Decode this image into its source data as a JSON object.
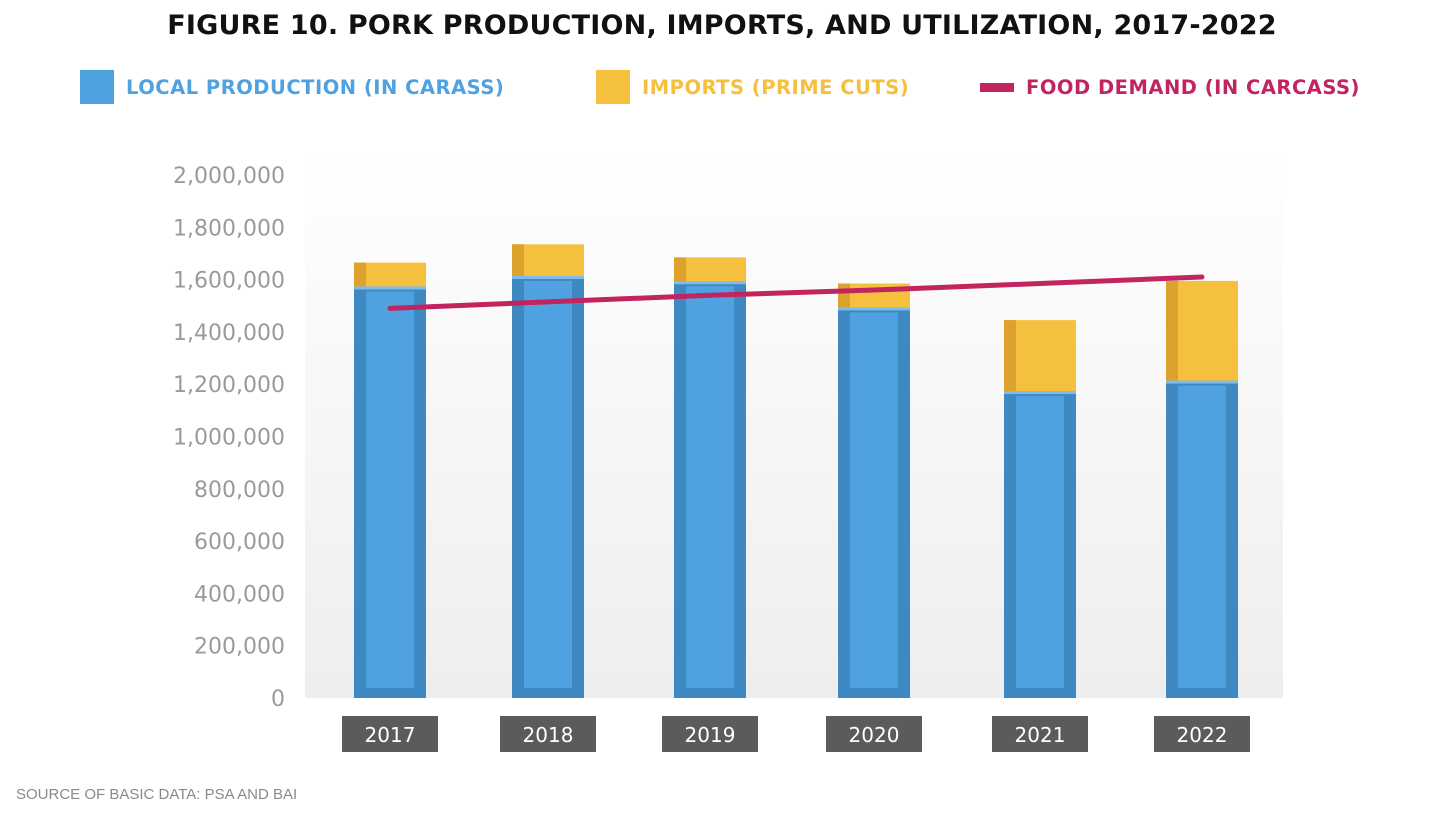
{
  "colors": {
    "production": "#4fa1e0",
    "production_dark": "#3f89c2",
    "imports": "#f5c03d",
    "imports_dark": "#dda12e",
    "demand": "#c1245f",
    "tick_text": "#9a9a9a",
    "year_label_bg": "#5b5b5b"
  },
  "chart_data": {
    "type": "bar",
    "title": "FIGURE 10. PORK PRODUCTION, IMPORTS, AND UTILIZATION, 2017-2022",
    "categories": [
      "2017",
      "2018",
      "2019",
      "2020",
      "2021",
      "2022"
    ],
    "series": [
      {
        "name": "LOCAL PRODUCTION (IN CARASS)",
        "kind": "bar-stacked",
        "values": [
          1570000,
          1610000,
          1590000,
          1490000,
          1170000,
          1210000
        ]
      },
      {
        "name": "IMPORTS (PRIME CUTS)",
        "kind": "bar-stacked",
        "values": [
          95000,
          125000,
          95000,
          95000,
          275000,
          385000
        ]
      },
      {
        "name": "FOOD DEMAND (IN CARCASS)",
        "kind": "line",
        "values": [
          1490000,
          1515000,
          1540000,
          1560000,
          1585000,
          1610000
        ]
      }
    ],
    "ylim": [
      0,
      2000000
    ],
    "yticks": [
      "0",
      "200,000",
      "400,000",
      "600,000",
      "800,000",
      "1,000,000",
      "1,200,000",
      "1,400,000",
      "1,600,000",
      "1,800,000",
      "2,000,000"
    ],
    "xlabel": "",
    "ylabel": "",
    "legend": "top",
    "grid": false
  },
  "footer": {
    "source": "SOURCE OF BASIC DATA: PSA AND BAI"
  }
}
